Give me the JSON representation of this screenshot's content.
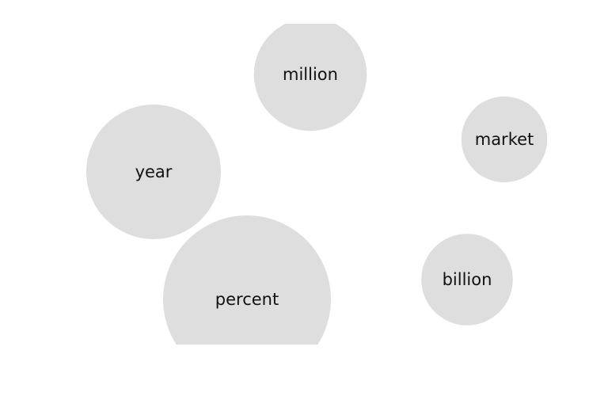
{
  "chart_data": {
    "type": "bubble",
    "title": "",
    "bubbles": [
      {
        "label": "million",
        "value": 19
      },
      {
        "label": "year",
        "value": 27
      },
      {
        "label": "market",
        "value": 11
      },
      {
        "label": "percent",
        "value": 42
      },
      {
        "label": "billion",
        "value": 12.5
      }
    ],
    "colors": {
      "bubble": "#dedede",
      "text": "#111111"
    }
  }
}
